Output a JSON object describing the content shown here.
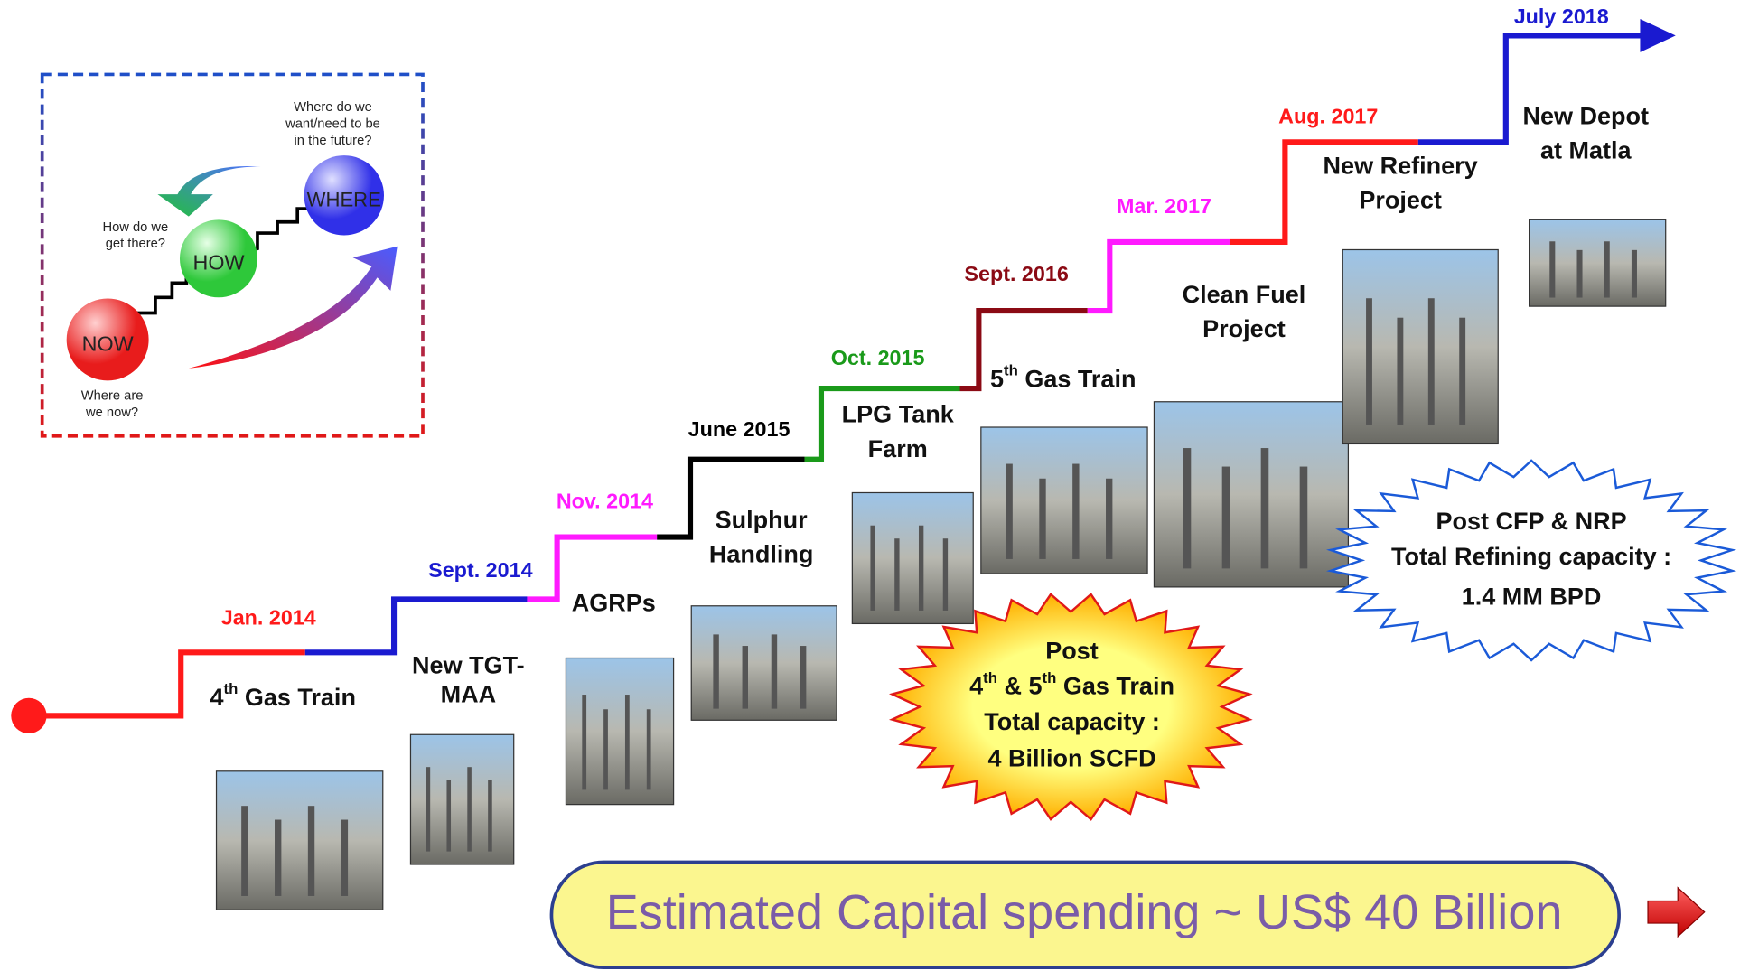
{
  "inset": {
    "future_question": [
      "Where do we",
      "want/need to be",
      "in the future?"
    ],
    "path_question": [
      "How do we",
      "get there?"
    ],
    "present_question": [
      "Where are",
      "we now?"
    ],
    "bubbles": [
      "NOW",
      "HOW",
      "WHERE"
    ]
  },
  "milestones": [
    {
      "date": "Jan. 2014",
      "color": "#ff1a1a",
      "lines": [
        [
          "4",
          {
            "sup": "th"
          },
          " Gas Train"
        ]
      ]
    },
    {
      "date": "Sept. 2014",
      "color": "#1a1ad0",
      "lines": [
        [
          "New TGT-"
        ],
        [
          "MAA"
        ]
      ]
    },
    {
      "date": "Nov. 2014",
      "color": "#ff1aff",
      "lines": [
        [
          "AGRPs"
        ]
      ]
    },
    {
      "date": "June 2015",
      "color": "#000000",
      "lines": [
        [
          "Sulphur"
        ],
        [
          "Handling"
        ]
      ]
    },
    {
      "date": "Oct. 2015",
      "color": "#1a9a1a",
      "lines": [
        [
          "LPG Tank"
        ],
        [
          "Farm"
        ]
      ]
    },
    {
      "date": "Sept. 2016",
      "color": "#8b0a14",
      "lines": [
        [
          "5",
          {
            "sup": "th"
          },
          " Gas Train"
        ]
      ]
    },
    {
      "date": "Mar. 2017",
      "color": "#ff1aff",
      "lines": [
        [
          "Clean Fuel"
        ],
        [
          "Project"
        ]
      ]
    },
    {
      "date": "Aug. 2017",
      "color": "#ff1a1a",
      "lines": [
        [
          "New Refinery"
        ],
        [
          "Project"
        ]
      ]
    },
    {
      "date": "July 2018",
      "color": "#1a1ad0",
      "lines": [
        [
          "New Depot"
        ],
        [
          "at Matla"
        ]
      ]
    }
  ],
  "gas_callout": {
    "lines": [
      [
        "Post"
      ],
      [
        "4",
        {
          "sup": "th"
        },
        " & 5",
        {
          "sup": "th"
        },
        " Gas Train"
      ],
      [
        "Total capacity :"
      ]
    ],
    "figure": "4 Billion SCFD"
  },
  "refining_callout": {
    "lines": [
      "Post CFP & NRP",
      "Total Refining capacity :"
    ],
    "figure": "1.4  MM BPD"
  },
  "banner": "Estimated Capital spending ~ US$  40 Billion"
}
